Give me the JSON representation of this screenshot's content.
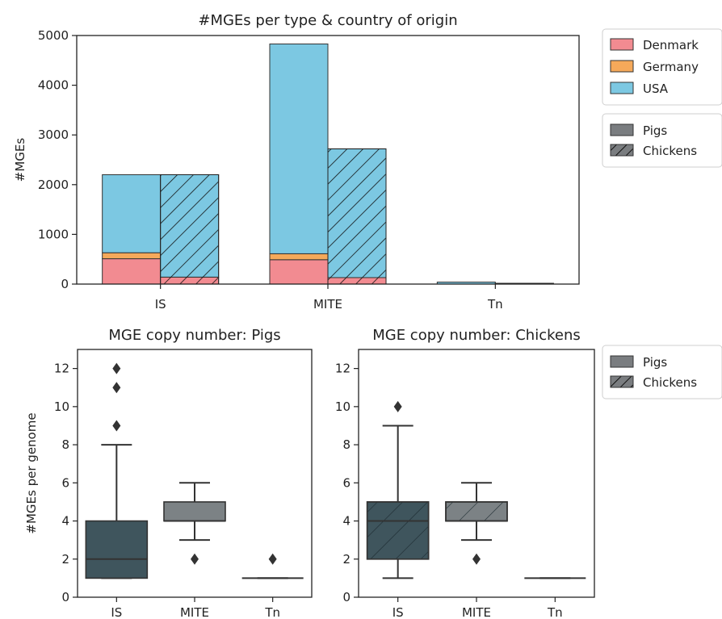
{
  "colors": {
    "Denmark": "#f28b91",
    "Germany": "#f5a95a",
    "USA": "#7cc8e2",
    "box_pigs": "#3f555d",
    "box_mite": "#7c8285",
    "legend_gray": "#7a7d80",
    "axis": "#222222"
  },
  "chart_data": [
    {
      "type": "bar",
      "subtype": "stacked-grouped",
      "title": "#MGEs per type & country of origin",
      "ylabel": "#MGEs",
      "xlabel": "",
      "ylim": [
        0,
        5000
      ],
      "yticks": [
        "0",
        "1000",
        "2000",
        "3000",
        "4000",
        "5000"
      ],
      "categories": [
        "IS",
        "MITE",
        "Tn"
      ],
      "groups": [
        "Pigs",
        "Chickens"
      ],
      "series": [
        {
          "name": "Denmark",
          "pigs": [
            510,
            490,
            0
          ],
          "chickens": [
            140,
            130,
            0
          ]
        },
        {
          "name": "Germany",
          "pigs": [
            120,
            120,
            0
          ],
          "chickens": [
            0,
            0,
            0
          ]
        },
        {
          "name": "USA",
          "pigs": [
            1570,
            4220,
            40
          ],
          "chickens": [
            2060,
            2590,
            15
          ]
        }
      ],
      "legend": {
        "countries": [
          "Denmark",
          "Germany",
          "USA"
        ],
        "hosts": [
          "Pigs",
          "Chickens"
        ],
        "placement": "outside-right"
      },
      "grid": false
    },
    {
      "type": "box",
      "title": "MGE copy number: Pigs",
      "ylabel": "#MGEs per genome",
      "ylim": [
        0,
        13
      ],
      "yticks": [
        "0",
        "2",
        "4",
        "6",
        "8",
        "10",
        "12"
      ],
      "categories": [
        "IS",
        "MITE",
        "Tn"
      ],
      "boxes": [
        {
          "category": "IS",
          "whislo": 1,
          "q1": 1,
          "median": 2,
          "q3": 4,
          "whishi": 8,
          "fliers": [
            9,
            11,
            12
          ]
        },
        {
          "category": "MITE",
          "whislo": 3,
          "q1": 4,
          "median": 4,
          "q3": 5,
          "whishi": 6,
          "fliers": [
            2
          ]
        },
        {
          "category": "Tn",
          "whislo": 1,
          "q1": 1,
          "median": 1,
          "q3": 1,
          "whishi": 1,
          "fliers": [
            2
          ]
        }
      ]
    },
    {
      "type": "box",
      "title": "MGE copy number: Chickens",
      "ylabel": "",
      "ylim": [
        0,
        13
      ],
      "yticks": [
        "0",
        "2",
        "4",
        "6",
        "8",
        "10",
        "12"
      ],
      "categories": [
        "IS",
        "MITE",
        "Tn"
      ],
      "boxes": [
        {
          "category": "IS",
          "whislo": 1,
          "q1": 2,
          "median": 4,
          "q3": 5,
          "whishi": 9,
          "fliers": [
            10
          ]
        },
        {
          "category": "MITE",
          "whislo": 3,
          "q1": 4,
          "median": 4,
          "q3": 5,
          "whishi": 6,
          "fliers": [
            2
          ]
        },
        {
          "category": "Tn",
          "whislo": 1,
          "q1": 1,
          "median": 1,
          "q3": 1,
          "whishi": 1,
          "fliers": []
        }
      ],
      "legend": {
        "hosts": [
          "Pigs",
          "Chickens"
        ],
        "placement": "outside-right"
      }
    }
  ]
}
